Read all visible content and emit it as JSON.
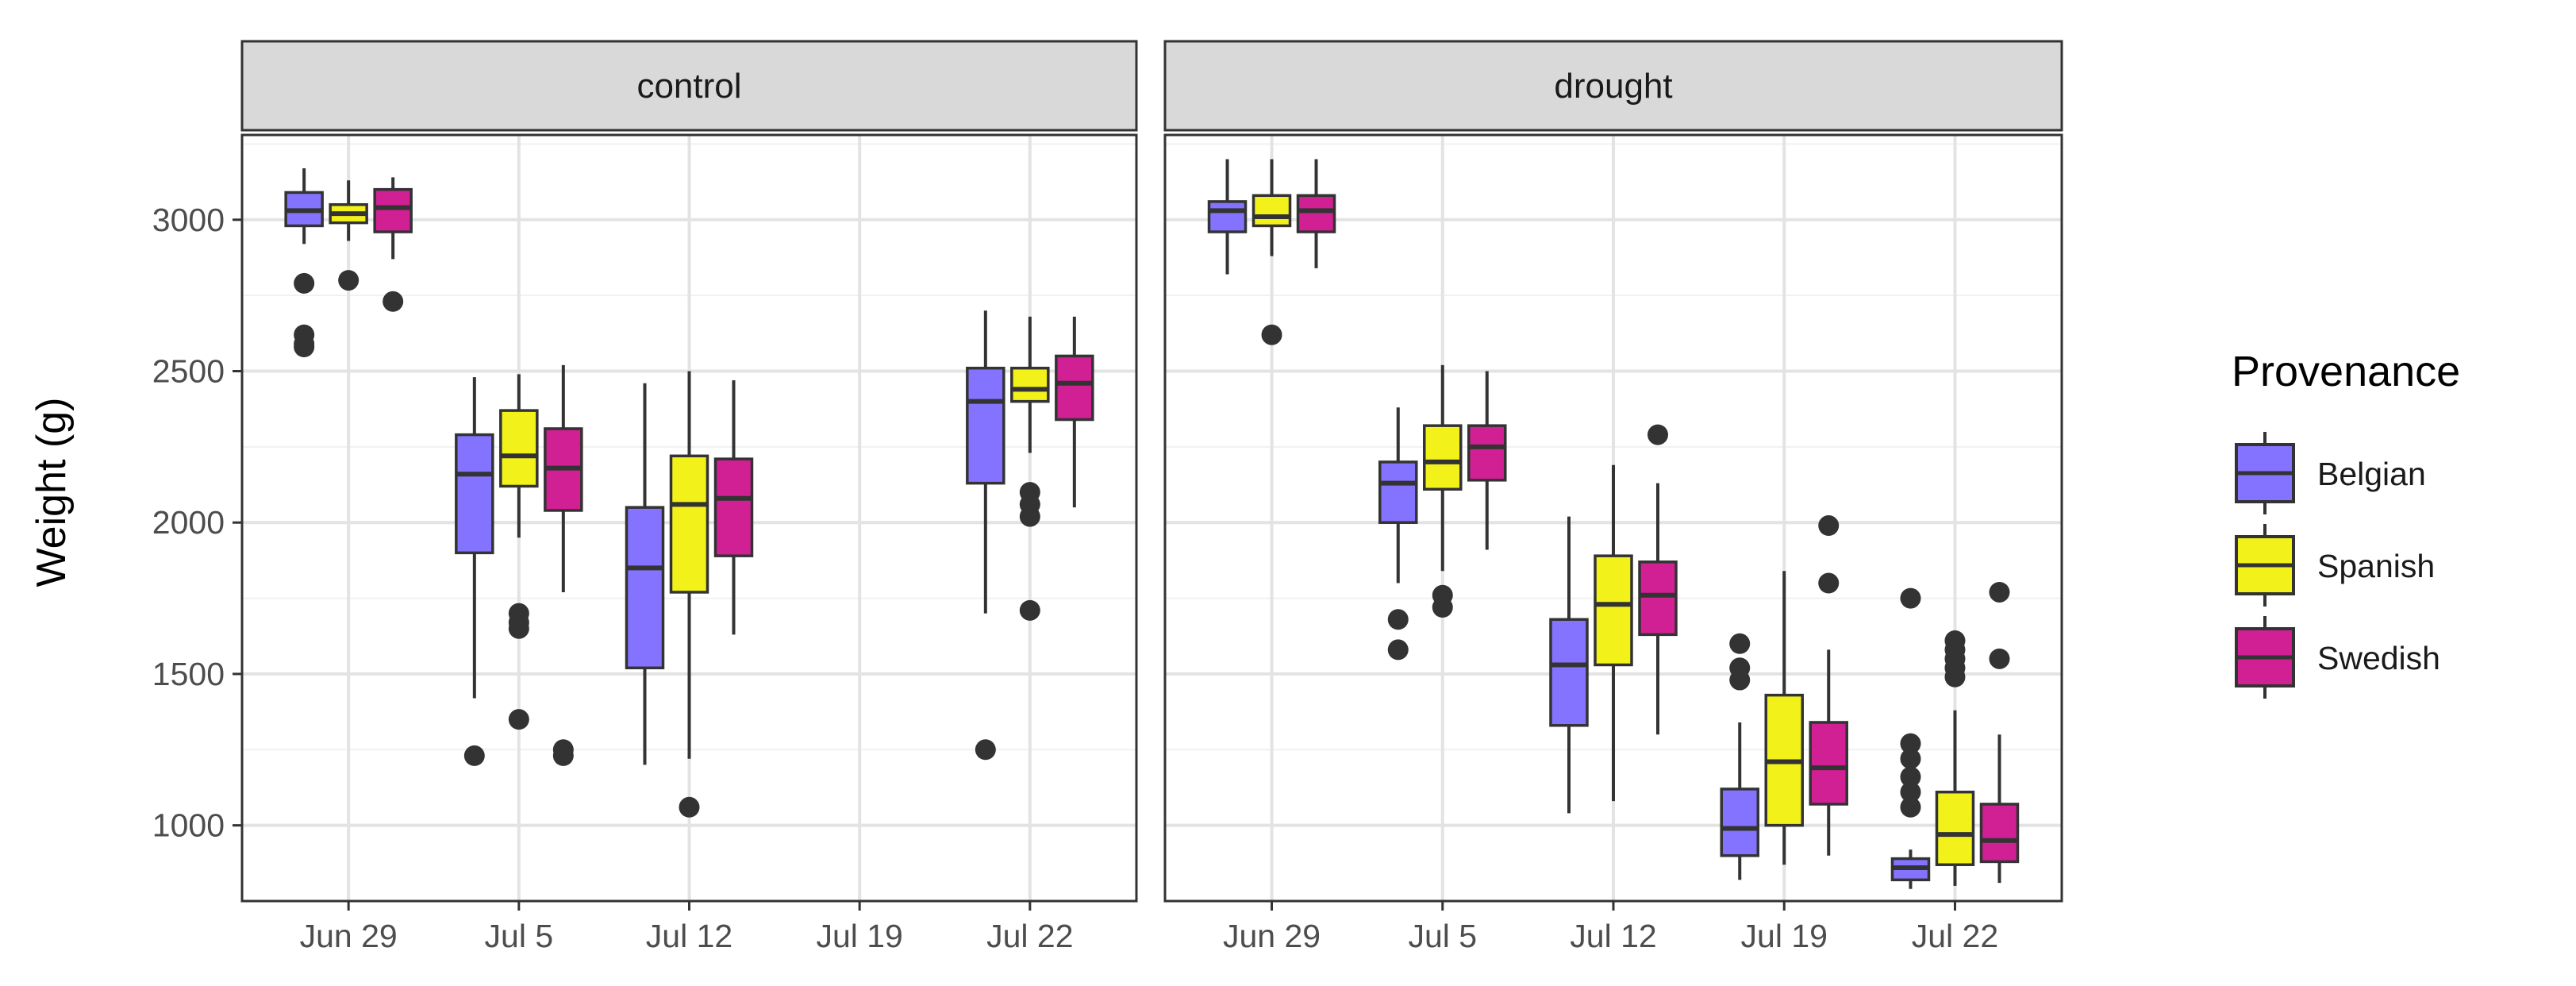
{
  "chart_data": {
    "type": "boxplot",
    "ylabel": "Weight (g)",
    "xlabel": "",
    "ylim": [
      750,
      3280
    ],
    "y_ticks": [
      {
        "value": 1000,
        "label": "1000"
      },
      {
        "value": 1500,
        "label": "1500"
      },
      {
        "value": 2000,
        "label": "2000"
      },
      {
        "value": 2500,
        "label": "2500"
      },
      {
        "value": 3000,
        "label": "3000"
      }
    ],
    "categories": [
      "Jun 29",
      "Jul 5",
      "Jul 12",
      "Jul 19",
      "Jul 22"
    ],
    "legend": {
      "title": "Provenance",
      "position": "right",
      "entries": [
        {
          "name": "Belgian",
          "color": "#8473ff"
        },
        {
          "name": "Spanish",
          "color": "#f2f21a"
        },
        {
          "name": "Swedish",
          "color": "#d11f94"
        }
      ]
    },
    "panels": [
      {
        "title": "control",
        "groups": [
          {
            "category": "Jun 29",
            "boxes": [
              {
                "series": "Belgian",
                "low": 2920,
                "q1": 2980,
                "median": 3030,
                "q3": 3090,
                "high": 3170,
                "outliers": [
                  2790,
                  2620,
                  2590,
                  2580
                ]
              },
              {
                "series": "Spanish",
                "low": 2930,
                "q1": 2990,
                "median": 3020,
                "q3": 3050,
                "high": 3130,
                "outliers": [
                  2800
                ]
              },
              {
                "series": "Swedish",
                "low": 2870,
                "q1": 2960,
                "median": 3040,
                "q3": 3100,
                "high": 3140,
                "outliers": [
                  2730
                ]
              }
            ]
          },
          {
            "category": "Jul 5",
            "boxes": [
              {
                "series": "Belgian",
                "low": 1420,
                "q1": 1900,
                "median": 2160,
                "q3": 2290,
                "high": 2480,
                "outliers": [
                  1230
                ]
              },
              {
                "series": "Spanish",
                "low": 1950,
                "q1": 2120,
                "median": 2220,
                "q3": 2370,
                "high": 2490,
                "outliers": [
                  1700,
                  1670,
                  1650,
                  1350
                ]
              },
              {
                "series": "Swedish",
                "low": 1770,
                "q1": 2040,
                "median": 2180,
                "q3": 2310,
                "high": 2520,
                "outliers": [
                  1250,
                  1230
                ]
              }
            ]
          },
          {
            "category": "Jul 12",
            "boxes": [
              {
                "series": "Belgian",
                "low": 1200,
                "q1": 1520,
                "median": 1850,
                "q3": 2050,
                "high": 2460,
                "outliers": []
              },
              {
                "series": "Spanish",
                "low": 1220,
                "q1": 1770,
                "median": 2060,
                "q3": 2220,
                "high": 2500,
                "outliers": [
                  1060
                ]
              },
              {
                "series": "Swedish",
                "low": 1630,
                "q1": 1890,
                "median": 2080,
                "q3": 2210,
                "high": 2470,
                "outliers": []
              }
            ]
          },
          {
            "category": "Jul 22",
            "boxes": [
              {
                "series": "Belgian",
                "low": 1700,
                "q1": 2130,
                "median": 2400,
                "q3": 2510,
                "high": 2700,
                "outliers": [
                  1250
                ]
              },
              {
                "series": "Spanish",
                "low": 2230,
                "q1": 2400,
                "median": 2440,
                "q3": 2510,
                "high": 2680,
                "outliers": [
                  2100,
                  2060,
                  2020,
                  1710
                ]
              },
              {
                "series": "Swedish",
                "low": 2050,
                "q1": 2340,
                "median": 2460,
                "q3": 2550,
                "high": 2680,
                "outliers": []
              }
            ]
          }
        ]
      },
      {
        "title": "drought",
        "groups": [
          {
            "category": "Jun 29",
            "boxes": [
              {
                "series": "Belgian",
                "low": 2820,
                "q1": 2960,
                "median": 3030,
                "q3": 3060,
                "high": 3200,
                "outliers": []
              },
              {
                "series": "Spanish",
                "low": 2880,
                "q1": 2980,
                "median": 3010,
                "q3": 3080,
                "high": 3200,
                "outliers": [
                  2620
                ]
              },
              {
                "series": "Swedish",
                "low": 2840,
                "q1": 2960,
                "median": 3030,
                "q3": 3080,
                "high": 3200,
                "outliers": []
              }
            ]
          },
          {
            "category": "Jul 5",
            "boxes": [
              {
                "series": "Belgian",
                "low": 1800,
                "q1": 2000,
                "median": 2130,
                "q3": 2200,
                "high": 2380,
                "outliers": [
                  1680,
                  1580
                ]
              },
              {
                "series": "Spanish",
                "low": 1840,
                "q1": 2110,
                "median": 2200,
                "q3": 2320,
                "high": 2520,
                "outliers": [
                  1760,
                  1720
                ]
              },
              {
                "series": "Swedish",
                "low": 1910,
                "q1": 2140,
                "median": 2250,
                "q3": 2320,
                "high": 2500,
                "outliers": []
              }
            ]
          },
          {
            "category": "Jul 12",
            "boxes": [
              {
                "series": "Belgian",
                "low": 1040,
                "q1": 1330,
                "median": 1530,
                "q3": 1680,
                "high": 2020,
                "outliers": []
              },
              {
                "series": "Spanish",
                "low": 1080,
                "q1": 1530,
                "median": 1730,
                "q3": 1890,
                "high": 2190,
                "outliers": []
              },
              {
                "series": "Swedish",
                "low": 1300,
                "q1": 1630,
                "median": 1760,
                "q3": 1870,
                "high": 2130,
                "outliers": [
                  2290
                ]
              }
            ]
          },
          {
            "category": "Jul 19",
            "boxes": [
              {
                "series": "Belgian",
                "low": 820,
                "q1": 900,
                "median": 990,
                "q3": 1120,
                "high": 1340,
                "outliers": [
                  1600,
                  1520,
                  1480
                ]
              },
              {
                "series": "Spanish",
                "low": 870,
                "q1": 1000,
                "median": 1210,
                "q3": 1430,
                "high": 1840,
                "outliers": []
              },
              {
                "series": "Swedish",
                "low": 900,
                "q1": 1070,
                "median": 1190,
                "q3": 1340,
                "high": 1580,
                "outliers": [
                  1990,
                  1800
                ]
              }
            ]
          },
          {
            "category": "Jul 22",
            "boxes": [
              {
                "series": "Belgian",
                "low": 790,
                "q1": 820,
                "median": 860,
                "q3": 890,
                "high": 920,
                "outliers": [
                  1750,
                  1270,
                  1220,
                  1160,
                  1110,
                  1060
                ]
              },
              {
                "series": "Spanish",
                "low": 800,
                "q1": 870,
                "median": 970,
                "q3": 1110,
                "high": 1380,
                "outliers": [
                  1610,
                  1580,
                  1550,
                  1520,
                  1490
                ]
              },
              {
                "series": "Swedish",
                "low": 810,
                "q1": 880,
                "median": 950,
                "q3": 1070,
                "high": 1300,
                "outliers": [
                  1770,
                  1550
                ]
              }
            ]
          }
        ]
      }
    ]
  }
}
